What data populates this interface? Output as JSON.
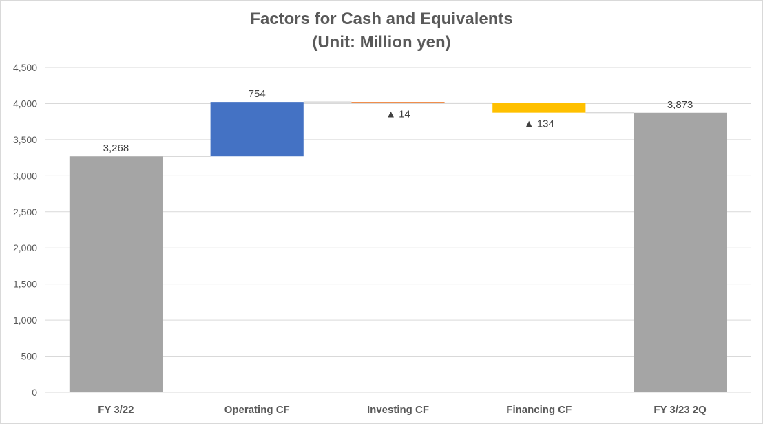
{
  "chart_data": {
    "type": "bar",
    "subtype": "waterfall",
    "title_line1": "Factors for Cash and Equivalents",
    "title_line2": "(Unit: Million yen)",
    "categories": [
      "FY 3/22",
      "Operating CF",
      "Investing CF",
      "Financing CF",
      "FY 3/23 2Q"
    ],
    "values": [
      3268,
      754,
      -14,
      -134,
      3873
    ],
    "bar_kind": [
      "total",
      "increase",
      "decrease",
      "decrease",
      "total"
    ],
    "data_labels": [
      "3,268",
      "754",
      "▲ 14",
      "▲ 134",
      "3,873"
    ],
    "colors": [
      "#a5a5a5",
      "#4472c4",
      "#ed7d31",
      "#ffc000",
      "#a5a5a5"
    ],
    "ylim": [
      0,
      4500
    ],
    "yticks": [
      0,
      500,
      1000,
      1500,
      2000,
      2500,
      3000,
      3500,
      4000,
      4500
    ],
    "ytick_labels": [
      "0",
      "500",
      "1,000",
      "1,500",
      "2,000",
      "2,500",
      "3,000",
      "3,500",
      "4,000",
      "4,500"
    ],
    "grid": true,
    "legend": "none"
  }
}
